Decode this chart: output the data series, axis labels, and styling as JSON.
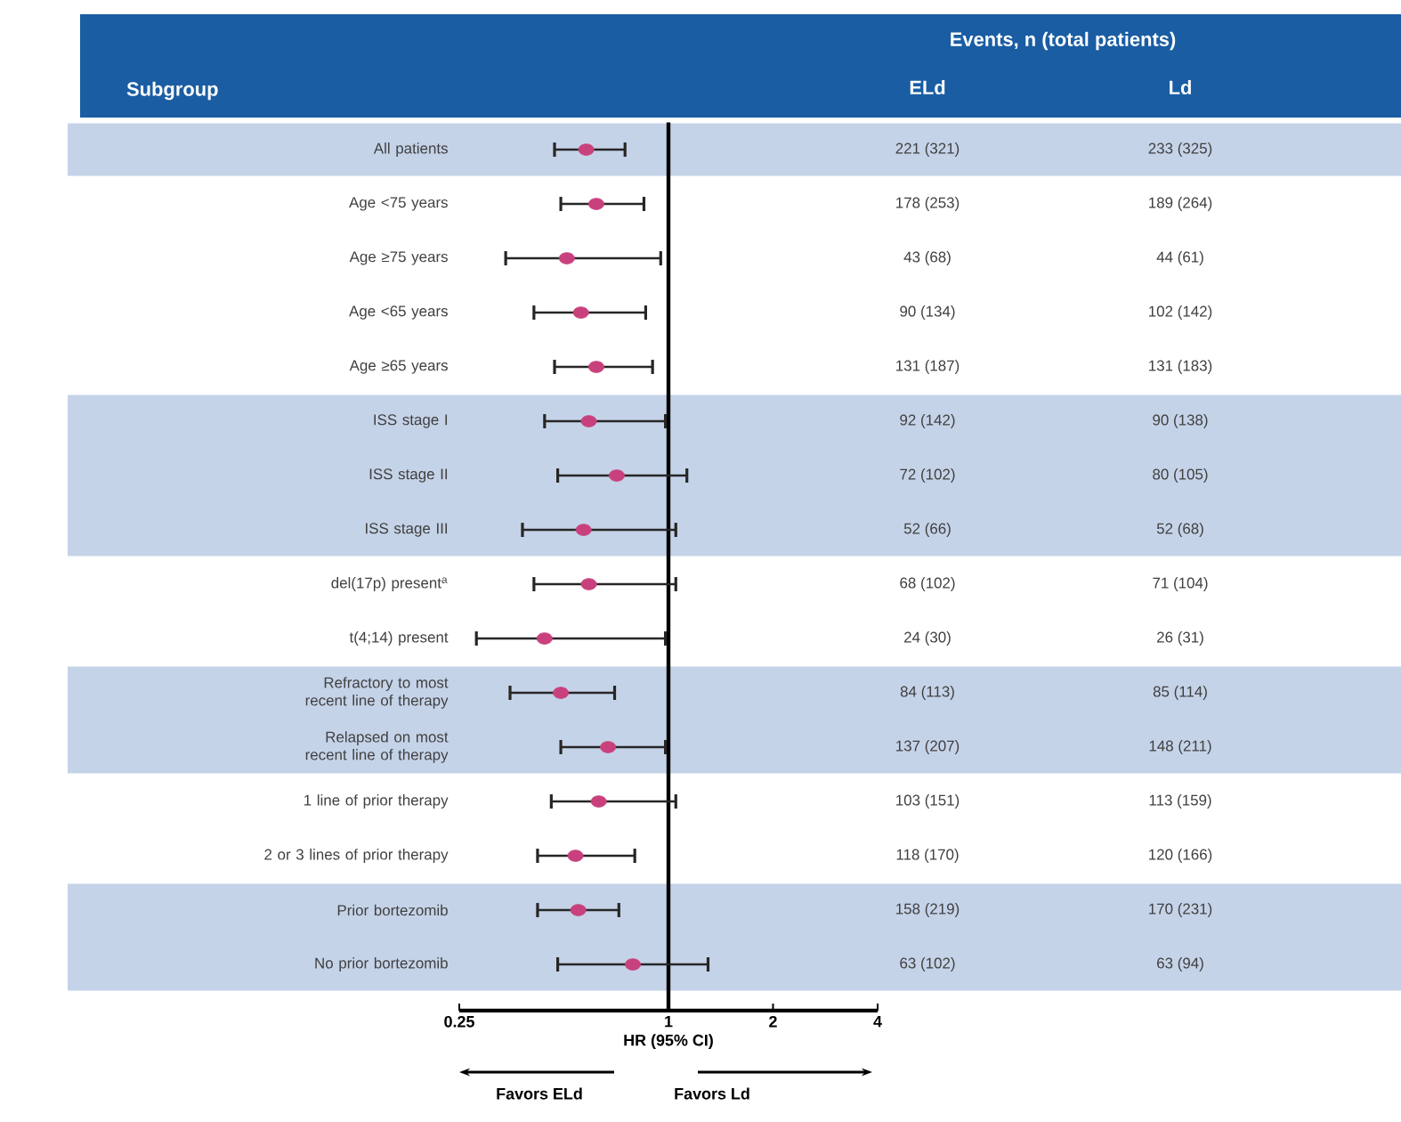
{
  "chart_data": [
    {
      "type": "scatter",
      "orientation": "horizontal",
      "ylabel": "Subgroup",
      "xlabel": "HR (95% CI)",
      "categories": [
        "All patients",
        "Age <75 years",
        "Age ≥75 years",
        "Age <65 years",
        "Age ≥65 years",
        "ISS stage I",
        "ISS stage II",
        "ISS stage III",
        "del(17p) present$^{a}$",
        "t(4;14) present",
        "Refractory to most recent line of therapy",
        "Relapsed on most recent line of therapy",
        "1 line of prior therapy",
        "2 or 3 lines of prior therapy",
        "Prior bortezomib",
        "No prior bortezomib"
      ],
      "values": [
        0.58,
        0.62,
        0.51,
        0.56,
        0.62,
        0.59,
        0.71,
        0.57,
        0.59,
        0.44,
        0.49,
        0.67,
        0.63,
        0.54,
        0.55,
        0.79
      ],
      "errors": [
        [
          0.47,
          0.75
        ],
        [
          0.49,
          0.85
        ],
        [
          0.34,
          0.95
        ],
        [
          0.41,
          0.86
        ],
        [
          0.47,
          0.9
        ],
        [
          0.44,
          0.98
        ],
        [
          0.48,
          1.13
        ],
        [
          0.38,
          1.05
        ],
        [
          0.41,
          1.05
        ],
        [
          0.28,
          0.98
        ],
        [
          0.35,
          0.7
        ],
        [
          0.49,
          0.98
        ],
        [
          0.46,
          1.05
        ],
        [
          0.42,
          0.8
        ],
        [
          0.42,
          0.72
        ],
        [
          0.48,
          1.3
        ]
      ],
      "color": "#c8407c",
      "marker": "circle",
      "log": "x",
      "xlim": [
        0.25,
        4
      ],
      "xticks": [
        0.25,
        1,
        2,
        4
      ],
      "ref_lines": [
        {
          "axis": "x",
          "value": 1
        }
      ],
      "bands": [
        {
          "axis": "y",
          "from": "All patients",
          "to": "All patients",
          "color": "#c5d3e8"
        },
        {
          "axis": "y",
          "from": "ISS stage I",
          "to": "ISS stage III",
          "color": "#c5d3e8"
        },
        {
          "axis": "y",
          "from": "Refractory to most recent line of therapy",
          "to": "Relapsed on most recent line of therapy",
          "color": "#c5d3e8"
        },
        {
          "axis": "y",
          "from": "Prior bortezomib",
          "to": "No prior bortezomib",
          "color": "#c5d3e8"
        }
      ],
      "annotations": [
        "Favors ELd",
        "Favors Ld"
      ]
    },
    {
      "type": "other",
      "title": "Events, n (total patients)",
      "categories": [
        "ELd",
        "Ld"
      ],
      "annotations": [
        "221 (321)",
        "233 (325)",
        "178 (253)",
        "189 (264)",
        "43 (68)",
        "44 (61)",
        "90 (134)",
        "102 (142)",
        "131 (187)",
        "131 (183)",
        "92 (142)",
        "90 (138)",
        "72 (102)",
        "80 (105)",
        "52 (66)",
        "52 (68)",
        "68 (102)",
        "71 (104)",
        "24 (30)",
        "26 (31)",
        "84 (113)",
        "85 (114)",
        "137 (207)",
        "148 (211)",
        "103 (151)",
        "113 (159)",
        "118 (170)",
        "120 (166)",
        "158 (219)",
        "170 (231)",
        "63 (102)",
        "63 (94)"
      ]
    }
  ]
}
